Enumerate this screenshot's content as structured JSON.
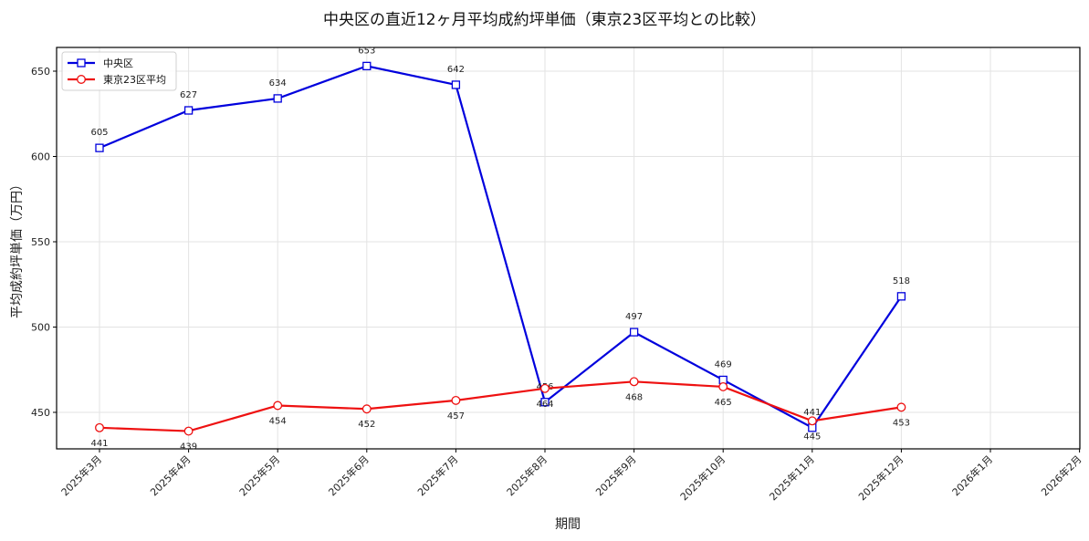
{
  "chart_data": {
    "type": "line",
    "title": "中央区の直近12ヶ月平均成約坪単価（東京23区平均との比較）",
    "xlabel": "期間",
    "ylabel": "平均成約坪単価（万円）",
    "categories": [
      "2025年3月",
      "2025年4月",
      "2025年5月",
      "2025年6月",
      "2025年7月",
      "2025年8月",
      "2025年9月",
      "2025年10月",
      "2025年11月",
      "2025年12月",
      "2026年1月",
      "2026年2月"
    ],
    "series": [
      {
        "name": "中央区",
        "color": "#0000dd",
        "marker": "square",
        "values": [
          605,
          627,
          634,
          653,
          642,
          456,
          497,
          469,
          441,
          518,
          null,
          null
        ]
      },
      {
        "name": "東京23区平均",
        "color": "#ee1111",
        "marker": "circle",
        "values": [
          441,
          439,
          454,
          452,
          457,
          464,
          468,
          465,
          445,
          453,
          null,
          null
        ]
      }
    ],
    "yticks": [
      450,
      500,
      550,
      600,
      650
    ],
    "ylim": [
      428.6,
      663.9
    ],
    "grid": true,
    "legend_position": "upper left"
  }
}
